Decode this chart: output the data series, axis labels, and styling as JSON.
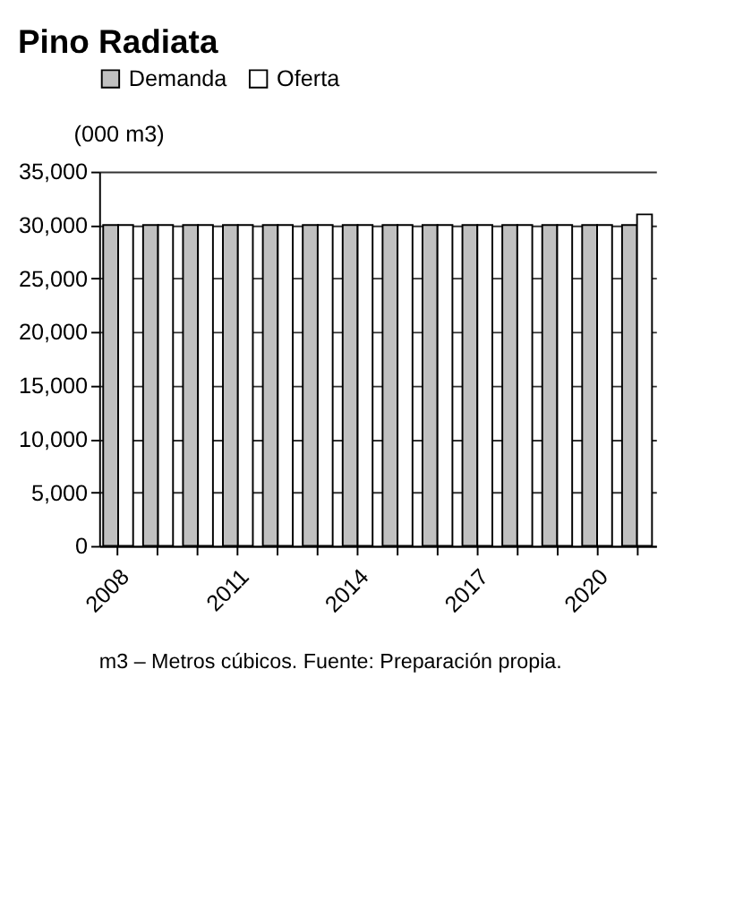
{
  "chart_data": {
    "type": "bar",
    "title": "Pino Radiata",
    "ylabel": "(000 m3)",
    "categories": [
      "2008",
      null,
      null,
      "2011",
      null,
      null,
      "2014",
      null,
      null,
      "2017",
      null,
      null,
      "2020",
      null
    ],
    "series": [
      {
        "name": "Demanda",
        "color": "#c0c0c0",
        "values": [
          30000,
          30000,
          30000,
          30000,
          30000,
          30000,
          30000,
          30000,
          30000,
          30000,
          30000,
          30000,
          30000,
          30000
        ]
      },
      {
        "name": "Oferta",
        "color": "#ffffff",
        "values": [
          30000,
          30000,
          30000,
          30000,
          30000,
          30000,
          30000,
          30000,
          30000,
          30000,
          30000,
          30000,
          30000,
          31000
        ]
      }
    ],
    "ylim": [
      0,
      35000
    ],
    "yticks": [
      0,
      {
        "value": 5000,
        "label": "5,000"
      },
      {
        "value": 10000,
        "label": "10,000"
      },
      {
        "value": 15000,
        "label": "15,000"
      },
      {
        "value": 20000,
        "label": "20,000"
      },
      {
        "value": 25000,
        "label": "25,000"
      },
      {
        "value": 30000,
        "label": "30,000"
      },
      {
        "value": 35000,
        "label": "35,000"
      }
    ],
    "grid": "y",
    "legend": "top",
    "annotations": [
      "m3 – Metros cúbicos. Fuente: Preparación propia."
    ]
  }
}
